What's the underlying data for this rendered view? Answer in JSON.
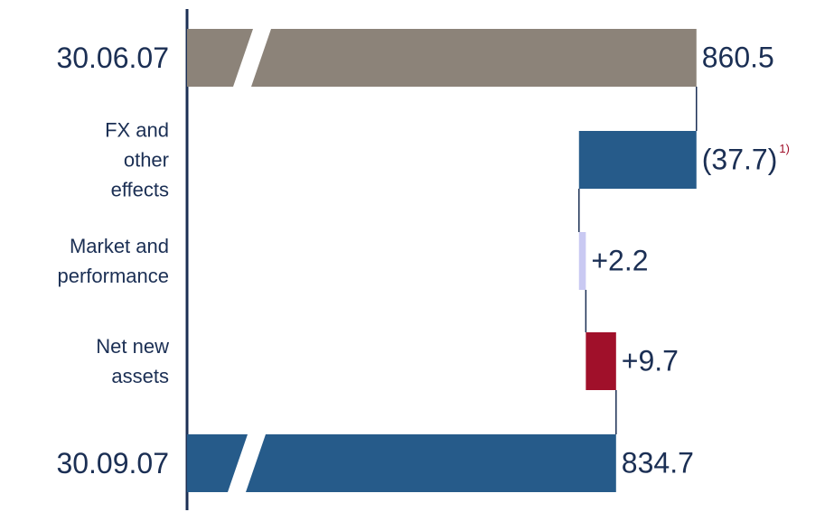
{
  "chart_data": {
    "type": "waterfall",
    "categories": [
      "30.06.07",
      "FX and\nother\neffects",
      "Market and\nperformance",
      "Net new\nassets",
      "30.09.07"
    ],
    "values": [
      860.5,
      -37.7,
      2.2,
      9.7,
      834.7
    ],
    "value_labels": [
      "860.5",
      "(37.7)",
      "+2.2",
      "+9.7",
      "834.7"
    ],
    "bar_types": [
      "total",
      "delta",
      "delta",
      "delta",
      "total"
    ],
    "colors": [
      "#8c8379",
      "#265b8a",
      "#c9c9f2",
      "#a0102a",
      "#265b8a"
    ],
    "footnote_marker": "1)",
    "xlim": [
      697,
      880
    ],
    "axis_break": true
  }
}
